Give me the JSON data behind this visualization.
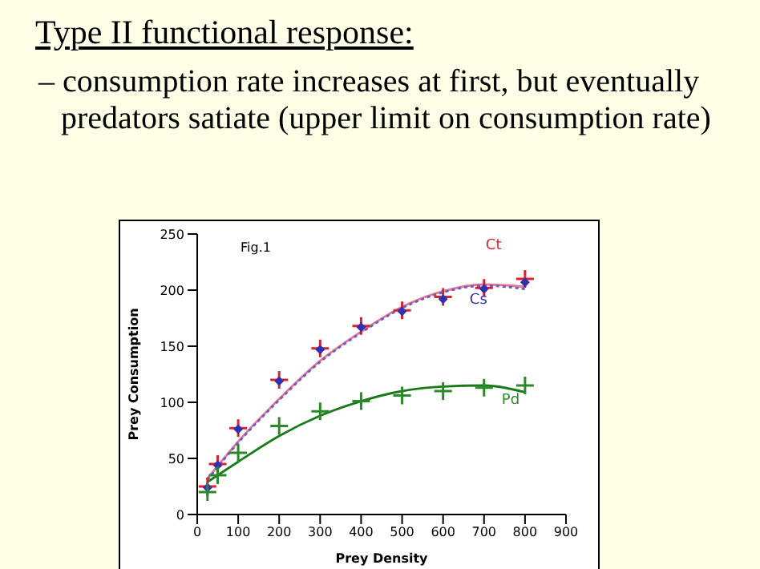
{
  "chart_data": {
    "type": "scatter",
    "title": "Type II functional response:",
    "subtitle": "– consumption rate increases at first, but eventually predators satiate (upper limit on consumption rate)",
    "xlabel": "Prey Density",
    "ylabel": "Prey Consumption",
    "annotations": [
      "Fig.1"
    ],
    "x": [
      25,
      50,
      100,
      200,
      300,
      400,
      500,
      600,
      700,
      800
    ],
    "series": [
      {
        "name": "Ct",
        "color": "#e0202a",
        "marker": "cross",
        "values": [
          25,
          45,
          77,
          120,
          148,
          168,
          182,
          194,
          202,
          210
        ]
      },
      {
        "name": "Cs",
        "color": "#3030b0",
        "marker": "diamond",
        "values": [
          24,
          44,
          76,
          119,
          147,
          167,
          181,
          192,
          201,
          207
        ]
      },
      {
        "name": "Pd",
        "color": "#2a8a2a",
        "marker": "cross",
        "values": [
          20,
          35,
          55,
          79,
          92,
          101,
          106,
          110,
          113,
          115
        ]
      },
      {
        "type": "line",
        "color": "#e87890",
        "line_style": "solid",
        "x": [
          25,
          100,
          200,
          300,
          400,
          500,
          600,
          700,
          800
        ],
        "values": [
          32,
          65,
          103,
          137,
          163,
          185,
          199,
          205,
          203
        ]
      },
      {
        "type": "line",
        "color": "#6060d0",
        "line_style": "dotted",
        "x": [
          25,
          100,
          200,
          300,
          400,
          500,
          600,
          700,
          800
        ],
        "values": [
          31,
          64,
          102,
          136,
          162,
          184,
          198,
          204,
          201
        ]
      },
      {
        "type": "line",
        "color": "#1a7a1a",
        "line_style": "solid",
        "x": [
          25,
          100,
          200,
          300,
          400,
          500,
          600,
          700,
          800
        ],
        "values": [
          29,
          47,
          70,
          88,
          101,
          110,
          114,
          115,
          109
        ]
      }
    ],
    "xlim": [
      0,
      900
    ],
    "xticks": [
      0,
      100,
      200,
      300,
      400,
      500,
      600,
      700,
      800,
      900
    ],
    "ylim": [
      0,
      250
    ],
    "yticks": [
      0,
      50,
      100,
      150,
      200,
      250
    ],
    "grid": false,
    "legend": false
  }
}
